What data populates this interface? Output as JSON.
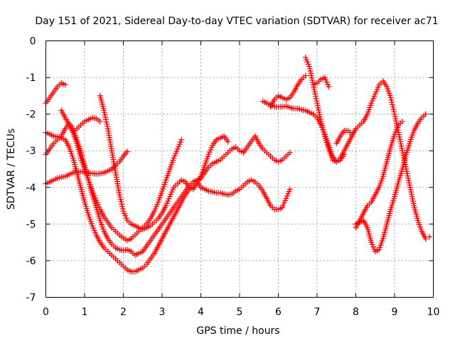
{
  "chart_data": {
    "type": "scatter",
    "title": "Day 151 of 2021, Sidereal Day-to-day VTEC variation (SDTVAR) for receiver ac71",
    "xlabel": "GPS time / hours",
    "ylabel": "SDTVAR / TECUs",
    "xlim": [
      0,
      10
    ],
    "ylim": [
      -7,
      0
    ],
    "xticks": [
      0,
      1,
      2,
      3,
      4,
      5,
      6,
      7,
      8,
      9,
      10
    ],
    "yticks": [
      0,
      -1,
      -2,
      -3,
      -4,
      -5,
      -6,
      -7
    ],
    "xtick_labels": [
      "0",
      "1",
      "2",
      "3",
      "4",
      "5",
      "6",
      "7",
      "8",
      "9",
      "10"
    ],
    "ytick_labels": [
      "0",
      "-1",
      "-2",
      "-3",
      "-4",
      "-5",
      "-6",
      "-7"
    ],
    "grid": true,
    "legend": "none",
    "marker": "plus",
    "color": "#ff0000",
    "series": [
      {
        "x": [
          0.0,
          0.1,
          0.2,
          0.3,
          0.4,
          0.5
        ],
        "y": [
          -1.7,
          -1.55,
          -1.4,
          -1.25,
          -1.15,
          -1.2
        ]
      },
      {
        "x": [
          0.0,
          0.1,
          0.2,
          0.3,
          0.4,
          0.5,
          0.6,
          0.7,
          0.8,
          0.9,
          1.0,
          1.1,
          1.2,
          1.3,
          1.4,
          1.5,
          1.6,
          1.7,
          1.8,
          1.9,
          2.0,
          2.1
        ],
        "y": [
          -3.9,
          -3.85,
          -3.8,
          -3.75,
          -3.72,
          -3.7,
          -3.65,
          -3.6,
          -3.58,
          -3.57,
          -3.58,
          -3.6,
          -3.62,
          -3.63,
          -3.62,
          -3.6,
          -3.55,
          -3.5,
          -3.4,
          -3.3,
          -3.15,
          -3.02
        ]
      },
      {
        "x": [
          0.0,
          0.1,
          0.2,
          0.3,
          0.4,
          0.5,
          0.6,
          0.7,
          0.8,
          0.9,
          1.0,
          1.1,
          1.2,
          1.3,
          1.4,
          1.5,
          1.6,
          1.7,
          1.8,
          1.9,
          2.0,
          2.1,
          2.2,
          2.3,
          2.4,
          2.5,
          2.6,
          2.7,
          2.8,
          2.9,
          3.0,
          3.1,
          3.2,
          3.3,
          3.4,
          3.5,
          3.6,
          3.7,
          3.8,
          3.9,
          4.0,
          4.1,
          4.2,
          4.3,
          4.4,
          4.5,
          4.6,
          4.7,
          4.8,
          4.9,
          5.0,
          5.1,
          5.2,
          5.3,
          5.4,
          5.5,
          5.6,
          5.7,
          5.8,
          5.9,
          6.0,
          6.1,
          6.2,
          6.3
        ],
        "y": [
          -3.1,
          -2.95,
          -2.8,
          -2.7,
          -2.6,
          -2.4,
          -2.25,
          -2.4,
          -2.7,
          -3.0,
          -3.4,
          -3.8,
          -4.2,
          -4.55,
          -4.9,
          -5.2,
          -5.4,
          -5.55,
          -5.65,
          -5.7,
          -5.72,
          -5.7,
          -5.75,
          -5.85,
          -5.8,
          -5.75,
          -5.6,
          -5.45,
          -5.3,
          -5.15,
          -5.0,
          -4.85,
          -4.7,
          -4.55,
          -4.4,
          -4.25,
          -4.1,
          -3.95,
          -3.85,
          -3.8,
          -3.75,
          -3.6,
          -3.45,
          -3.35,
          -3.3,
          -3.25,
          -3.15,
          -3.05,
          -2.95,
          -2.9,
          -3.0,
          -3.05,
          -2.9,
          -2.75,
          -2.6,
          -2.8,
          -2.95,
          -3.05,
          -3.15,
          -3.25,
          -3.3,
          -3.25,
          -3.15,
          -3.05
        ]
      },
      {
        "x": [
          0.0,
          0.1,
          0.2,
          0.3,
          0.4,
          0.5,
          0.6,
          0.7,
          0.8,
          0.9,
          1.0,
          1.1,
          1.2,
          1.3,
          1.4,
          1.5,
          1.6,
          1.7,
          1.8,
          1.9,
          2.0,
          2.1,
          2.2,
          2.3,
          2.4,
          2.5,
          2.6,
          2.7,
          2.8,
          2.9,
          3.0,
          3.1,
          3.2,
          3.3,
          3.4,
          3.5,
          3.6,
          3.7,
          3.8,
          3.9,
          4.0,
          4.1,
          4.2,
          4.3,
          4.4,
          4.5,
          4.6,
          4.7,
          4.8,
          4.9,
          5.0,
          5.1,
          5.2,
          5.3,
          5.4,
          5.5,
          5.6,
          5.7,
          5.8,
          5.9,
          6.0,
          6.1,
          6.2,
          6.3
        ],
        "y": [
          -2.5,
          -2.55,
          -2.6,
          -2.62,
          -2.65,
          -2.7,
          -2.9,
          -3.2,
          -3.6,
          -4.0,
          -4.4,
          -4.75,
          -5.05,
          -5.3,
          -5.5,
          -5.65,
          -5.75,
          -5.85,
          -5.95,
          -6.05,
          -6.15,
          -6.25,
          -6.3,
          -6.3,
          -6.25,
          -6.2,
          -6.1,
          -5.95,
          -5.8,
          -5.6,
          -5.4,
          -5.2,
          -5.0,
          -4.8,
          -4.6,
          -4.4,
          -4.2,
          -4.05,
          -3.95,
          -3.85,
          -4.0,
          -4.05,
          -4.1,
          -4.12,
          -4.15,
          -4.15,
          -4.18,
          -4.2,
          -4.18,
          -4.1,
          -4.05,
          -3.95,
          -3.85,
          -3.8,
          -3.85,
          -3.95,
          -4.1,
          -4.3,
          -4.5,
          -4.6,
          -4.6,
          -4.55,
          -4.3,
          -4.05
        ]
      },
      {
        "x": [
          0.4,
          0.5,
          0.6,
          0.7,
          0.8,
          0.9,
          1.0,
          1.1,
          1.2,
          1.3,
          1.4,
          1.5,
          1.6,
          1.7,
          1.8,
          1.9,
          2.0,
          2.1,
          2.2,
          2.3,
          2.4,
          2.5,
          2.6,
          2.7,
          2.8,
          2.9,
          3.0,
          3.1,
          3.2,
          3.3,
          3.4,
          3.5
        ],
        "y": [
          -1.9,
          -2.1,
          -2.3,
          -2.5,
          -2.8,
          -3.2,
          -3.5,
          -3.8,
          -4.1,
          -4.35,
          -4.6,
          -4.8,
          -4.95,
          -5.1,
          -5.2,
          -5.3,
          -5.38,
          -5.45,
          -5.4,
          -5.3,
          -5.2,
          -5.1,
          -5.0,
          -4.85,
          -4.65,
          -4.4,
          -4.1,
          -3.8,
          -3.5,
          -3.2,
          -2.95,
          -2.7
        ]
      },
      {
        "x": [
          0.7,
          0.8,
          0.9,
          1.0,
          1.1,
          1.2,
          1.3,
          1.4
        ],
        "y": [
          -2.5,
          -2.4,
          -2.3,
          -2.2,
          -2.15,
          -2.1,
          -2.12,
          -2.2
        ]
      },
      {
        "x": [
          1.4,
          1.5,
          1.6,
          1.7,
          1.8,
          1.9,
          2.0,
          2.1,
          2.2,
          2.3,
          2.4,
          2.5,
          2.6,
          2.7,
          2.8,
          2.9,
          3.0,
          3.1,
          3.2,
          3.3,
          3.4,
          3.5,
          3.6,
          3.7,
          3.8,
          3.9,
          4.0,
          4.1,
          4.2,
          4.3,
          4.4,
          4.5,
          4.6,
          4.7
        ],
        "y": [
          -1.5,
          -1.9,
          -2.4,
          -3.0,
          -3.6,
          -4.2,
          -4.65,
          -4.9,
          -5.0,
          -5.05,
          -5.1,
          -5.15,
          -5.1,
          -5.05,
          -4.95,
          -4.85,
          -4.7,
          -4.5,
          -4.25,
          -4.0,
          -3.9,
          -3.8,
          -3.85,
          -4.0,
          -4.05,
          -3.9,
          -3.7,
          -3.4,
          -3.1,
          -2.85,
          -2.7,
          -2.65,
          -2.6,
          -2.75
        ]
      },
      {
        "x": [
          5.6,
          5.7,
          5.8,
          5.9,
          6.0,
          6.1,
          6.2,
          6.3,
          6.4,
          6.5,
          6.6,
          6.7,
          6.8,
          6.9,
          7.0,
          7.1,
          7.2,
          7.3,
          7.4,
          7.5,
          7.6,
          7.7,
          7.8,
          7.9,
          8.0,
          8.1,
          8.2,
          8.3,
          8.4,
          8.5,
          8.6,
          8.7,
          8.8,
          8.9,
          9.0,
          9.1,
          9.2,
          9.3,
          9.4,
          9.5,
          9.6,
          9.7,
          9.8
        ],
        "y": [
          -1.65,
          -1.7,
          -1.75,
          -1.8,
          -1.8,
          -1.8,
          -1.78,
          -1.82,
          -1.85,
          -1.85,
          -1.88,
          -1.9,
          -1.95,
          -2.0,
          -2.1,
          -2.3,
          -2.55,
          -2.85,
          -3.15,
          -3.3,
          -3.2,
          -3.0,
          -2.8,
          -2.6,
          -2.4,
          -2.3,
          -2.2,
          -2.0,
          -1.7,
          -1.45,
          -1.2,
          -1.1,
          -1.25,
          -1.55,
          -2.0,
          -2.5,
          -3.0,
          -3.5,
          -4.0,
          -4.5,
          -4.9,
          -5.2,
          -5.4
        ]
      },
      {
        "x": [
          5.8,
          5.9,
          6.0,
          6.1,
          6.2,
          6.3,
          6.4,
          6.5,
          6.6,
          6.7
        ],
        "y": [
          -1.8,
          -1.6,
          -1.5,
          -1.55,
          -1.6,
          -1.55,
          -1.4,
          -1.2,
          -1.05,
          -0.95
        ]
      },
      {
        "x": [
          6.7,
          6.8,
          6.9,
          7.0,
          7.1,
          7.2,
          7.3,
          7.4,
          7.5,
          7.6,
          7.7
        ],
        "y": [
          -0.45,
          -0.7,
          -1.2,
          -1.7,
          -2.2,
          -2.6,
          -2.95,
          -3.25,
          -3.3,
          -3.25,
          -3.1
        ]
      },
      {
        "x": [
          6.9,
          7.0,
          7.1,
          7.2,
          7.3
        ],
        "y": [
          -1.2,
          -1.15,
          -1.05,
          -1.0,
          -1.25
        ]
      },
      {
        "x": [
          7.5,
          7.6,
          7.7,
          7.8,
          7.9,
          8.0,
          8.1,
          8.2,
          8.3,
          8.4,
          8.5,
          8.6,
          8.7,
          8.8,
          8.9,
          9.0,
          9.1,
          9.2,
          9.3,
          9.4,
          9.5,
          9.6,
          9.7,
          9.8,
          9.9
        ],
        "y": [
          -2.8,
          -2.6,
          -2.45,
          -2.45,
          -2.55,
          -5.0,
          -4.95,
          -4.9,
          -5.1,
          -5.5,
          -5.75,
          -5.7,
          -5.4,
          -5.0,
          -4.6,
          -4.25,
          -3.85,
          -3.5,
          -3.1,
          -2.75,
          -2.45,
          -2.25,
          -2.1,
          -2.0,
          -5.35
        ]
      },
      {
        "x": [
          8.0,
          8.1,
          8.2,
          8.3,
          8.4,
          8.5,
          8.6,
          8.7,
          8.8,
          8.9,
          9.0,
          9.1,
          9.2
        ],
        "y": [
          -5.1,
          -4.9,
          -4.7,
          -4.5,
          -4.4,
          -4.2,
          -4.0,
          -3.7,
          -3.3,
          -2.9,
          -2.55,
          -2.3,
          -2.2
        ]
      }
    ]
  }
}
